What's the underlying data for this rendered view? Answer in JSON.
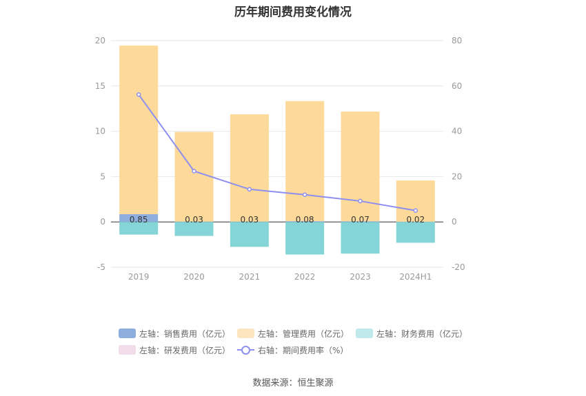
{
  "chart_data": {
    "type": "bar",
    "title": "历年期间费用变化情况",
    "categories": [
      "2019",
      "2020",
      "2021",
      "2022",
      "2023",
      "2024H1"
    ],
    "left_axis": {
      "ylim": [
        -5,
        20
      ],
      "ticks": [
        "-5",
        "0",
        "5",
        "10",
        "15",
        "20"
      ]
    },
    "right_axis": {
      "ylim": [
        -20,
        80
      ],
      "ticks": [
        "-20",
        "0",
        "20",
        "40",
        "60",
        "80"
      ]
    },
    "series": [
      {
        "name": "左轴：销售费用（亿元）",
        "type": "bar",
        "axis": "left",
        "color": "#8eaedd",
        "values": [
          0.85,
          0.03,
          0.03,
          0.08,
          0.07,
          0.02
        ],
        "labels": [
          "0.85",
          "0.03",
          "0.03",
          "0.08",
          "0.07",
          "0.02"
        ]
      },
      {
        "name": "左轴：管理费用（亿元）",
        "type": "bar",
        "axis": "left",
        "color": "#fdd99a",
        "values": [
          18.6,
          9.9,
          11.85,
          13.25,
          12.1,
          4.55
        ]
      },
      {
        "name": "左轴：财务费用（亿元）",
        "type": "bar",
        "axis": "left",
        "color": "#85d5d8",
        "values": [
          -1.4,
          -1.55,
          -2.75,
          -3.6,
          -3.5,
          -2.3
        ]
      },
      {
        "name": "左轴：研发费用（亿元）",
        "type": "bar",
        "axis": "left",
        "color": "#f3dcea",
        "values": [
          0,
          0,
          0,
          0,
          0,
          0
        ]
      },
      {
        "name": "右轴：期间费用率（%）",
        "type": "line",
        "axis": "right",
        "color": "#8c8ef0",
        "values": [
          56.2,
          22.4,
          14.4,
          12.0,
          9.2,
          5.0
        ]
      }
    ],
    "grid": true,
    "legend_position": "bottom",
    "source": "数据来源：恒生聚源"
  }
}
